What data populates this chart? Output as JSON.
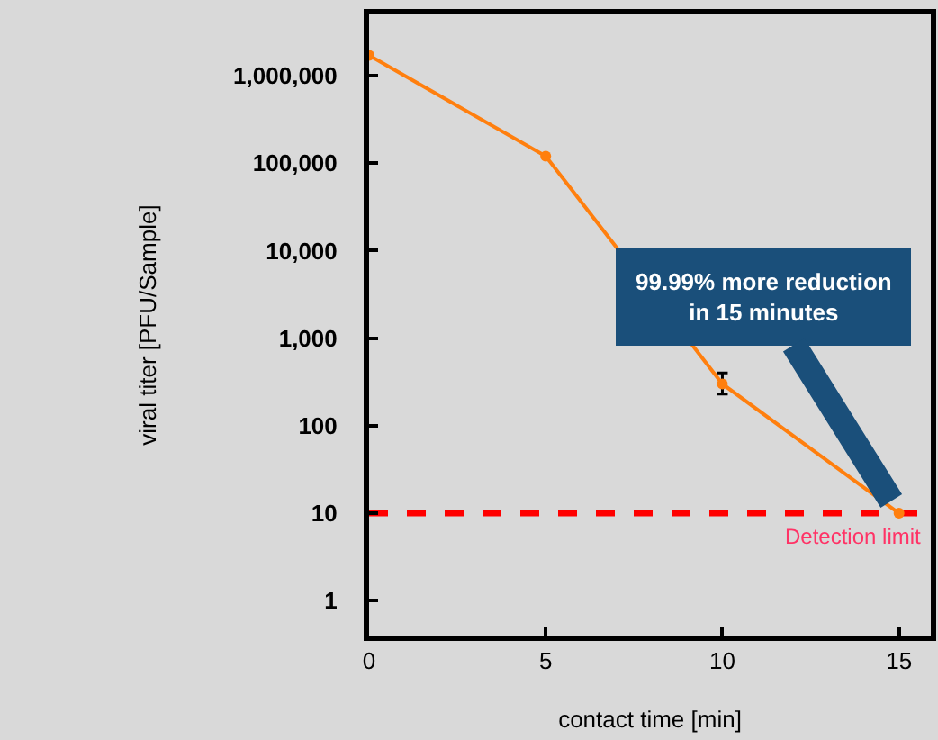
{
  "chart_data": {
    "type": "line",
    "xlabel": "contact time [min]",
    "ylabel": "viral titer [PFU/Sample]",
    "x": [
      0,
      5,
      10,
      15
    ],
    "series": [
      {
        "color": "#ff7f0e",
        "values": [
          1700000,
          120000,
          300,
          10
        ],
        "errors": [
          null,
          null,
          [
            230,
            400
          ],
          null
        ]
      }
    ],
    "log": "y",
    "xlim": [
      0,
      15.9
    ],
    "ylim": [
      0.4,
      5000000
    ],
    "xticks": [
      0,
      5,
      10,
      15
    ],
    "yticks": [
      {
        "value": 1,
        "label": "1"
      },
      {
        "value": 10,
        "label": "10"
      },
      {
        "value": 100,
        "label": "100"
      },
      {
        "value": 1000,
        "label": "1,000"
      },
      {
        "value": 10000,
        "label": "10,000"
      },
      {
        "value": 100000,
        "label": "100,000"
      },
      {
        "value": 1000000,
        "label": "1,000,000"
      }
    ],
    "ref_lines": [
      {
        "axis": "y",
        "value": 10,
        "label": "Detection limit",
        "color": "#ff0000",
        "line_style": "dashed"
      }
    ],
    "annotations": [
      {
        "text": "99.99% more reduction\nin 15 minutes",
        "x": 15,
        "y": 10
      }
    ],
    "marker": "circle",
    "grid": false
  }
}
